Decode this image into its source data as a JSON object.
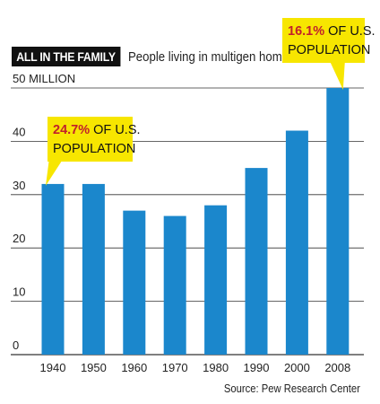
{
  "header": {
    "tag": "ALL IN THE FAMILY",
    "subtitle": "People living in multigen homes"
  },
  "source": "Source: Pew Research Center",
  "colors": {
    "bar": "#1b87cc",
    "callout_bg": "#f7e600",
    "callout_highlight": "#c1202b",
    "tag_bg": "#111111",
    "grid": "#333333"
  },
  "callouts": [
    {
      "year": "1940",
      "highlight": "24.7%",
      "line1": " OF U.S.",
      "line2": "POPULATION"
    },
    {
      "year": "2008",
      "highlight": "16.1%",
      "line1": " OF U.S.",
      "line2": "POPULATION"
    }
  ],
  "chart_data": {
    "type": "bar",
    "title": "People living in multigen homes",
    "ylabel": "50 MILLION",
    "categories": [
      "1940",
      "1950",
      "1960",
      "1970",
      "1980",
      "1990",
      "2000",
      "2008"
    ],
    "values": [
      32,
      32,
      27,
      26,
      28,
      35,
      42,
      50
    ],
    "ylim": [
      0,
      50
    ],
    "y_ticks": [
      {
        "value": 0,
        "label": "0"
      },
      {
        "value": 10,
        "label": "10"
      },
      {
        "value": 20,
        "label": "20"
      },
      {
        "value": 30,
        "label": "30"
      },
      {
        "value": 40,
        "label": "40"
      },
      {
        "value": 50,
        "label": "50 MILLION"
      }
    ],
    "grid": true
  }
}
